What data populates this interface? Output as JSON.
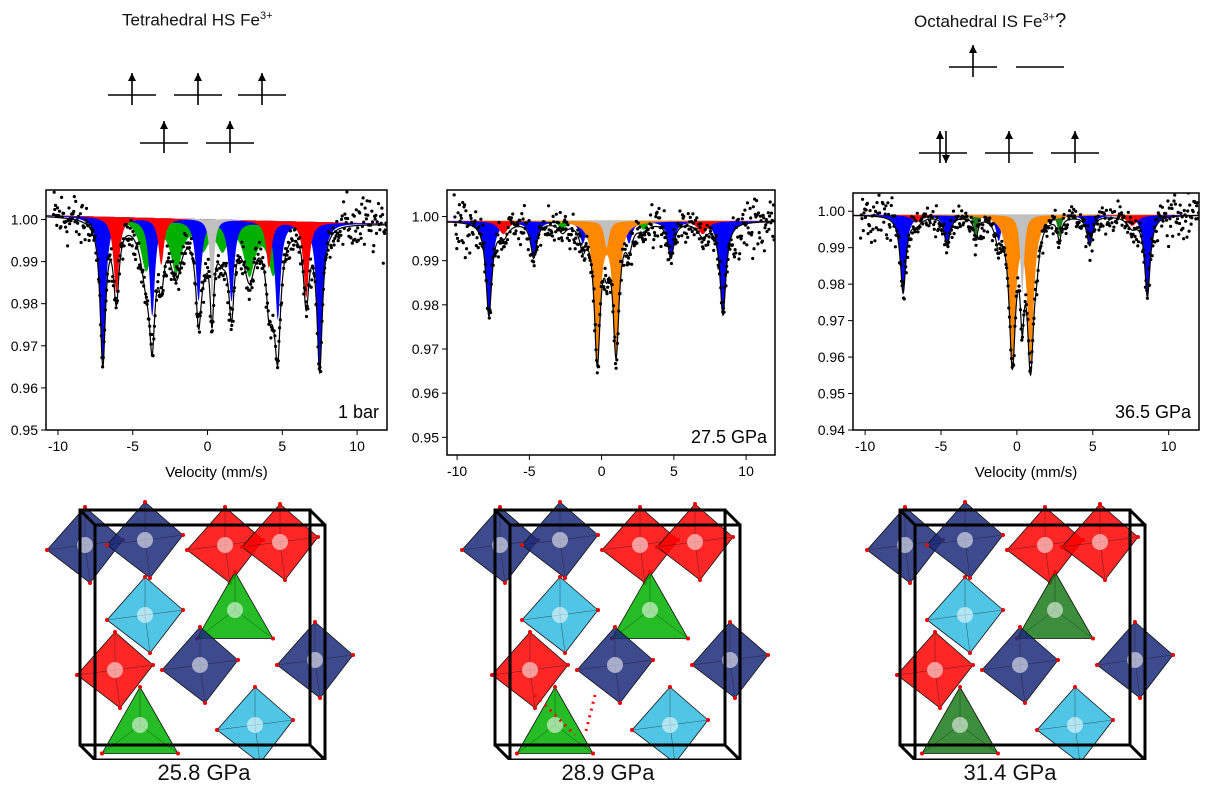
{
  "titles": {
    "left": {
      "text": "Tetrahedral HS Fe",
      "sup": "3+",
      "suffix": ""
    },
    "right": {
      "text": "Octahedral IS Fe",
      "sup": "3+",
      "suffix": "?"
    }
  },
  "orbital_diagrams": {
    "left": {
      "top_row": [
        "up",
        "up",
        "up"
      ],
      "bottom_row": [
        "up",
        "up"
      ]
    },
    "right": {
      "top_row": [
        "up",
        "empty"
      ],
      "bottom_row": [
        "updown",
        "up",
        "up"
      ]
    }
  },
  "colors": {
    "blue": "#0000ff",
    "red": "#ff0000",
    "green": "#00b000",
    "darkgreen": "#1a7a1a",
    "grey": "#c0c0c0",
    "orange": "#ff8800",
    "cyan": "#33bbe0",
    "navy": "#1c2a7a"
  },
  "chart_data": [
    {
      "type": "line",
      "label": "1 bar",
      "xlabel": "Velocity (mm/s)",
      "xlim": [
        -10.8,
        12
      ],
      "ylim": [
        0.95,
        1.007
      ],
      "xticks": [
        -10,
        -5,
        0,
        5,
        10
      ],
      "yticks": [
        0.95,
        0.96,
        0.97,
        0.98,
        0.99,
        1.0
      ],
      "ytick_labels": [
        "0.95",
        "0.96",
        "0.97",
        "0.98",
        "0.99",
        "1.00"
      ],
      "baseline": [
        1.001,
        0.999
      ],
      "components": [
        {
          "color": "green",
          "width": 0.45,
          "lines": [
            [
              -4.1,
              0.012
            ],
            [
              -2.1,
              0.012
            ],
            [
              -0.3,
              0.006
            ],
            [
              1.0,
              0.006
            ],
            [
              2.8,
              0.012
            ],
            [
              4.4,
              0.012
            ]
          ]
        },
        {
          "color": "blue",
          "width": 0.22,
          "lines": [
            [
              -7.0,
              0.034
            ],
            [
              -3.7,
              0.023
            ],
            [
              -0.6,
              0.019
            ],
            [
              1.6,
              0.019
            ],
            [
              4.7,
              0.023
            ],
            [
              7.5,
              0.034
            ]
          ]
        },
        {
          "color": "red",
          "width": 0.22,
          "lines": [
            [
              -6.1,
              0.018
            ],
            [
              -3.1,
              0.011
            ],
            [
              4.1,
              0.011
            ],
            [
              6.6,
              0.018
            ]
          ]
        },
        {
          "color": "grey",
          "width": 0.15,
          "lines": [
            [
              0.3,
              0.019
            ]
          ]
        }
      ]
    },
    {
      "type": "line",
      "label": "27.5 GPa",
      "xlabel": "Velocity (mm/s)",
      "xlim": [
        -10.7,
        12
      ],
      "ylim": [
        0.946,
        1.006
      ],
      "xticks": [
        -10,
        -5,
        0,
        5,
        10
      ],
      "yticks": [
        0.95,
        0.96,
        0.97,
        0.98,
        0.99,
        1.0
      ],
      "ytick_labels": [
        "0.95",
        "0.96",
        "0.97",
        "0.98",
        "0.99",
        "1.00"
      ],
      "baseline": [
        0.999,
        0.999
      ],
      "components": [
        {
          "color": "blue",
          "width": 0.25,
          "lines": [
            [
              -7.8,
              0.021
            ],
            [
              -4.7,
              0.008
            ],
            [
              -1.3,
              0.005
            ],
            [
              1.9,
              0.005
            ],
            [
              4.8,
              0.008
            ],
            [
              8.4,
              0.021
            ]
          ]
        },
        {
          "color": "red",
          "width": 0.4,
          "lines": [
            [
              -6.8,
              0.003
            ],
            [
              7.0,
              0.003
            ]
          ]
        },
        {
          "color": "green",
          "width": 0.3,
          "lines": [
            [
              -2.7,
              0.002
            ],
            [
              2.9,
              0.002
            ]
          ]
        },
        {
          "color": "orange",
          "width": 0.25,
          "lines": [
            [
              -0.3,
              0.031
            ],
            [
              1.0,
              0.029
            ]
          ]
        },
        {
          "color": "grey",
          "width": 0.2,
          "lines": [
            [
              0.35,
              0.006
            ]
          ]
        }
      ]
    },
    {
      "type": "line",
      "label": "36.5 GPa",
      "xlabel": "Velocity (mm/s)",
      "xlim": [
        -10.8,
        12
      ],
      "ylim": [
        0.94,
        1.005
      ],
      "xticks": [
        -10,
        -5,
        0,
        5,
        10
      ],
      "yticks": [
        0.94,
        0.95,
        0.96,
        0.97,
        0.98,
        0.99,
        1.0
      ],
      "ytick_labels": [
        "0.94",
        "0.95",
        "0.96",
        "0.97",
        "0.98",
        "0.99",
        "1.00"
      ],
      "baseline": [
        0.999,
        0.999
      ],
      "components": [
        {
          "color": "blue",
          "width": 0.22,
          "lines": [
            [
              -7.5,
              0.021
            ],
            [
              -4.6,
              0.008
            ],
            [
              -1.2,
              0.007
            ],
            [
              1.3,
              0.007
            ],
            [
              4.8,
              0.008
            ],
            [
              8.6,
              0.022
            ]
          ]
        },
        {
          "color": "red",
          "width": 0.4,
          "lines": [
            [
              -6.6,
              0.002
            ],
            [
              7.6,
              0.003
            ]
          ]
        },
        {
          "color": "darkgreen",
          "width": 0.15,
          "lines": [
            [
              -2.7,
              0.006
            ],
            [
              2.8,
              0.006
            ]
          ]
        },
        {
          "color": "orange",
          "width": 0.25,
          "lines": [
            [
              -0.3,
              0.039
            ],
            [
              0.9,
              0.039
            ]
          ]
        },
        {
          "color": "grey",
          "width": 0.15,
          "lines": [
            [
              0.35,
              0.021
            ]
          ]
        }
      ]
    }
  ],
  "structures": [
    {
      "pressure": "25.8 GPa",
      "polyhedra": [
        "navy",
        "navy",
        "red",
        "red",
        "cyan",
        "green",
        "red",
        "navy",
        "navy",
        "green",
        "cyan"
      ],
      "dotted": false
    },
    {
      "pressure": "28.9 GPa",
      "polyhedra": [
        "navy",
        "navy",
        "red",
        "red",
        "cyan",
        "green",
        "red",
        "navy",
        "navy",
        "green",
        "cyan"
      ],
      "dotted": true
    },
    {
      "pressure": "31.4 GPa",
      "polyhedra": [
        "navy",
        "navy",
        "red",
        "red",
        "cyan",
        "darkgreen",
        "red",
        "navy",
        "navy",
        "darkgreen",
        "cyan"
      ],
      "dotted": false
    }
  ]
}
